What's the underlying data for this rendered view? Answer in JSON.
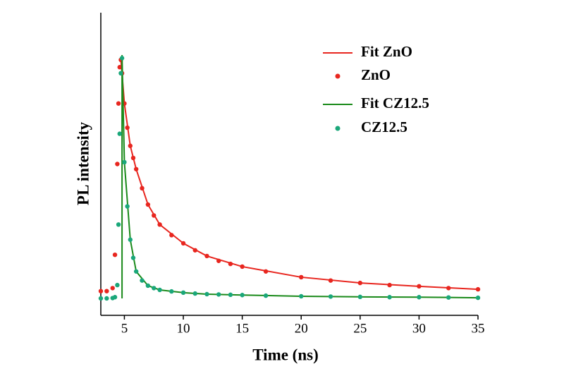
{
  "chart_data": {
    "type": "scatter",
    "xlabel": "Time (ns)",
    "ylabel": "PL intensity",
    "xlim": [
      3,
      35
    ],
    "xticks": [
      5,
      10,
      15,
      20,
      25,
      30,
      35
    ],
    "ylim": [
      0,
      1
    ],
    "legend": "upper right",
    "series": [
      {
        "name": "Fit ZnO",
        "mode": "line",
        "color": "#e8261f",
        "x": [
          4.7,
          4.8,
          5,
          5.5,
          6,
          7,
          8,
          10,
          12,
          15,
          20,
          25,
          30,
          35
        ],
        "values": [
          0.844,
          0.8,
          0.7,
          0.56,
          0.483,
          0.366,
          0.3,
          0.238,
          0.196,
          0.161,
          0.126,
          0.107,
          0.096,
          0.086
        ]
      },
      {
        "name": "ZnO",
        "mode": "markers",
        "color": "#e8261f",
        "x": [
          3,
          3.5,
          4,
          4.2,
          4.4,
          4.5,
          4.6,
          4.7,
          4.8,
          5,
          5.25,
          5.5,
          5.75,
          6,
          6.5,
          7,
          7.5,
          8,
          9,
          10,
          11,
          12,
          13,
          14,
          15,
          17,
          20,
          22.5,
          25,
          27.5,
          30,
          32.5,
          35
        ],
        "values": [
          0.08,
          0.08,
          0.09,
          0.2,
          0.5,
          0.7,
          0.82,
          0.844,
          0.8,
          0.7,
          0.62,
          0.56,
          0.52,
          0.483,
          0.42,
          0.366,
          0.33,
          0.3,
          0.265,
          0.238,
          0.215,
          0.196,
          0.18,
          0.17,
          0.161,
          0.145,
          0.126,
          0.115,
          0.107,
          0.1,
          0.096,
          0.09,
          0.086
        ]
      },
      {
        "name": "Fit CZ12.5",
        "mode": "line",
        "color": "#1a8a1a",
        "x": [
          4.8,
          4.8,
          5,
          5.5,
          6,
          7,
          8,
          10,
          12,
          15,
          20,
          25,
          30,
          35
        ],
        "values": [
          0.056,
          0.86,
          0.506,
          0.25,
          0.145,
          0.098,
          0.084,
          0.075,
          0.07,
          0.067,
          0.063,
          0.061,
          0.06,
          0.058
        ]
      },
      {
        "name": "CZ12.5",
        "mode": "markers",
        "color": "#1aa77a",
        "x": [
          3,
          3.5,
          4,
          4.2,
          4.4,
          4.5,
          4.6,
          4.7,
          4.8,
          5,
          5.25,
          5.5,
          5.75,
          6,
          6.5,
          7,
          7.5,
          8,
          9,
          10,
          11,
          12,
          13,
          14,
          15,
          17,
          20,
          22.5,
          25,
          27.5,
          30,
          32.5,
          35
        ],
        "values": [
          0.056,
          0.056,
          0.057,
          0.06,
          0.1,
          0.3,
          0.6,
          0.8,
          0.85,
          0.506,
          0.36,
          0.25,
          0.19,
          0.145,
          0.115,
          0.098,
          0.09,
          0.084,
          0.079,
          0.075,
          0.072,
          0.07,
          0.069,
          0.068,
          0.067,
          0.065,
          0.063,
          0.062,
          0.061,
          0.06,
          0.06,
          0.059,
          0.058
        ]
      }
    ]
  }
}
